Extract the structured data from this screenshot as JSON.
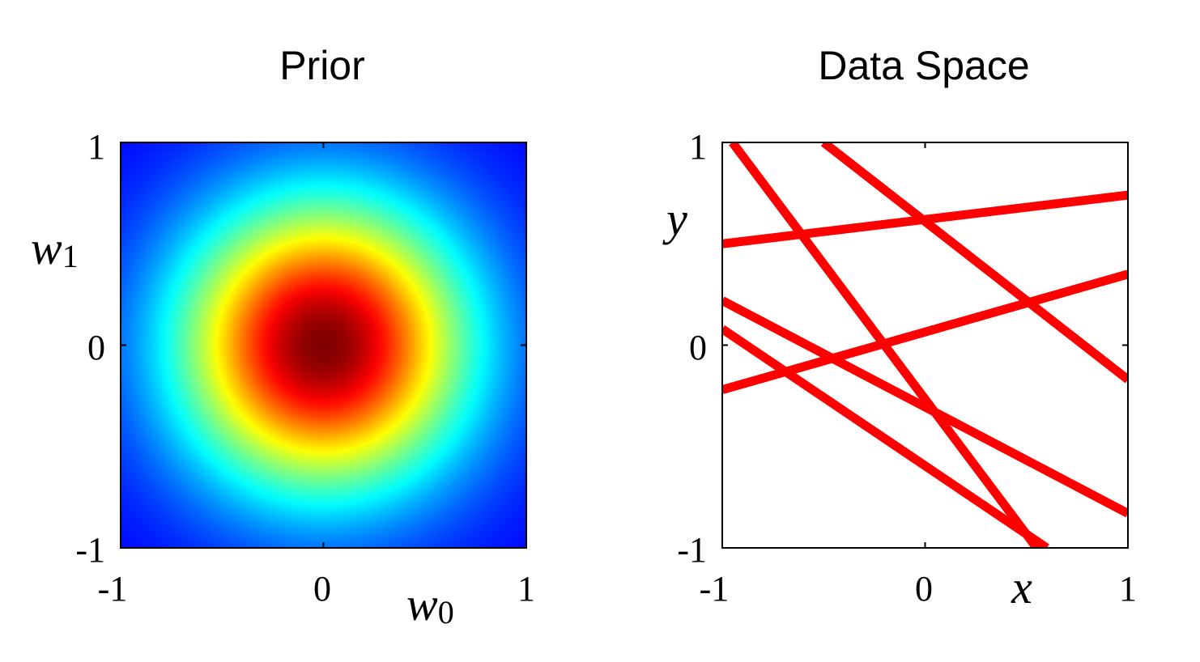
{
  "chart_data": [
    {
      "type": "heatmap",
      "title": "Prior",
      "xlabel": {
        "var": "w",
        "sub": "0"
      },
      "ylabel": {
        "var": "w",
        "sub": "1"
      },
      "xlim": [
        -1,
        1
      ],
      "ylim": [
        -1,
        1
      ],
      "xticks": [
        {
          "value": -1,
          "label": "-1"
        },
        {
          "value": 0,
          "label": "0"
        },
        {
          "value": 1,
          "label": "1"
        }
      ],
      "yticks": [
        {
          "value": -1,
          "label": "-1"
        },
        {
          "value": 0,
          "label": "0"
        },
        {
          "value": 1,
          "label": "1"
        }
      ],
      "distribution": "isotropic gaussian",
      "mean": [
        0,
        0
      ],
      "std": 0.5,
      "colormap": "jet",
      "colors": [
        "#00008f",
        "#0000ff",
        "#00ffff",
        "#ffff00",
        "#ff0000",
        "#800000"
      ],
      "grid": false
    },
    {
      "type": "line",
      "title": "Data Space",
      "xlabel": "x",
      "ylabel": "y",
      "xlim": [
        -1,
        1
      ],
      "ylim": [
        -1,
        1
      ],
      "xticks": [
        {
          "value": -1,
          "label": "-1"
        },
        {
          "value": 0,
          "label": "0"
        },
        {
          "value": 1,
          "label": "1"
        }
      ],
      "yticks": [
        {
          "value": -1,
          "label": "-1"
        },
        {
          "value": 0,
          "label": "0"
        },
        {
          "value": 1,
          "label": "1"
        }
      ],
      "line_color": "#ff0000",
      "grid": false,
      "series": [
        {
          "x": [
            -0.95,
            0.55
          ],
          "y": [
            1.0,
            -1.0
          ]
        },
        {
          "x": [
            -0.5,
            1.0
          ],
          "y": [
            1.0,
            -0.17
          ]
        },
        {
          "x": [
            -1.0,
            1.0
          ],
          "y": [
            0.5,
            0.74
          ]
        },
        {
          "x": [
            -1.0,
            1.0
          ],
          "y": [
            -0.22,
            0.35
          ]
        },
        {
          "x": [
            -1.0,
            1.0
          ],
          "y": [
            0.22,
            -0.83
          ]
        },
        {
          "x": [
            -1.0,
            0.6
          ],
          "y": [
            0.08,
            -1.0
          ]
        }
      ]
    }
  ]
}
